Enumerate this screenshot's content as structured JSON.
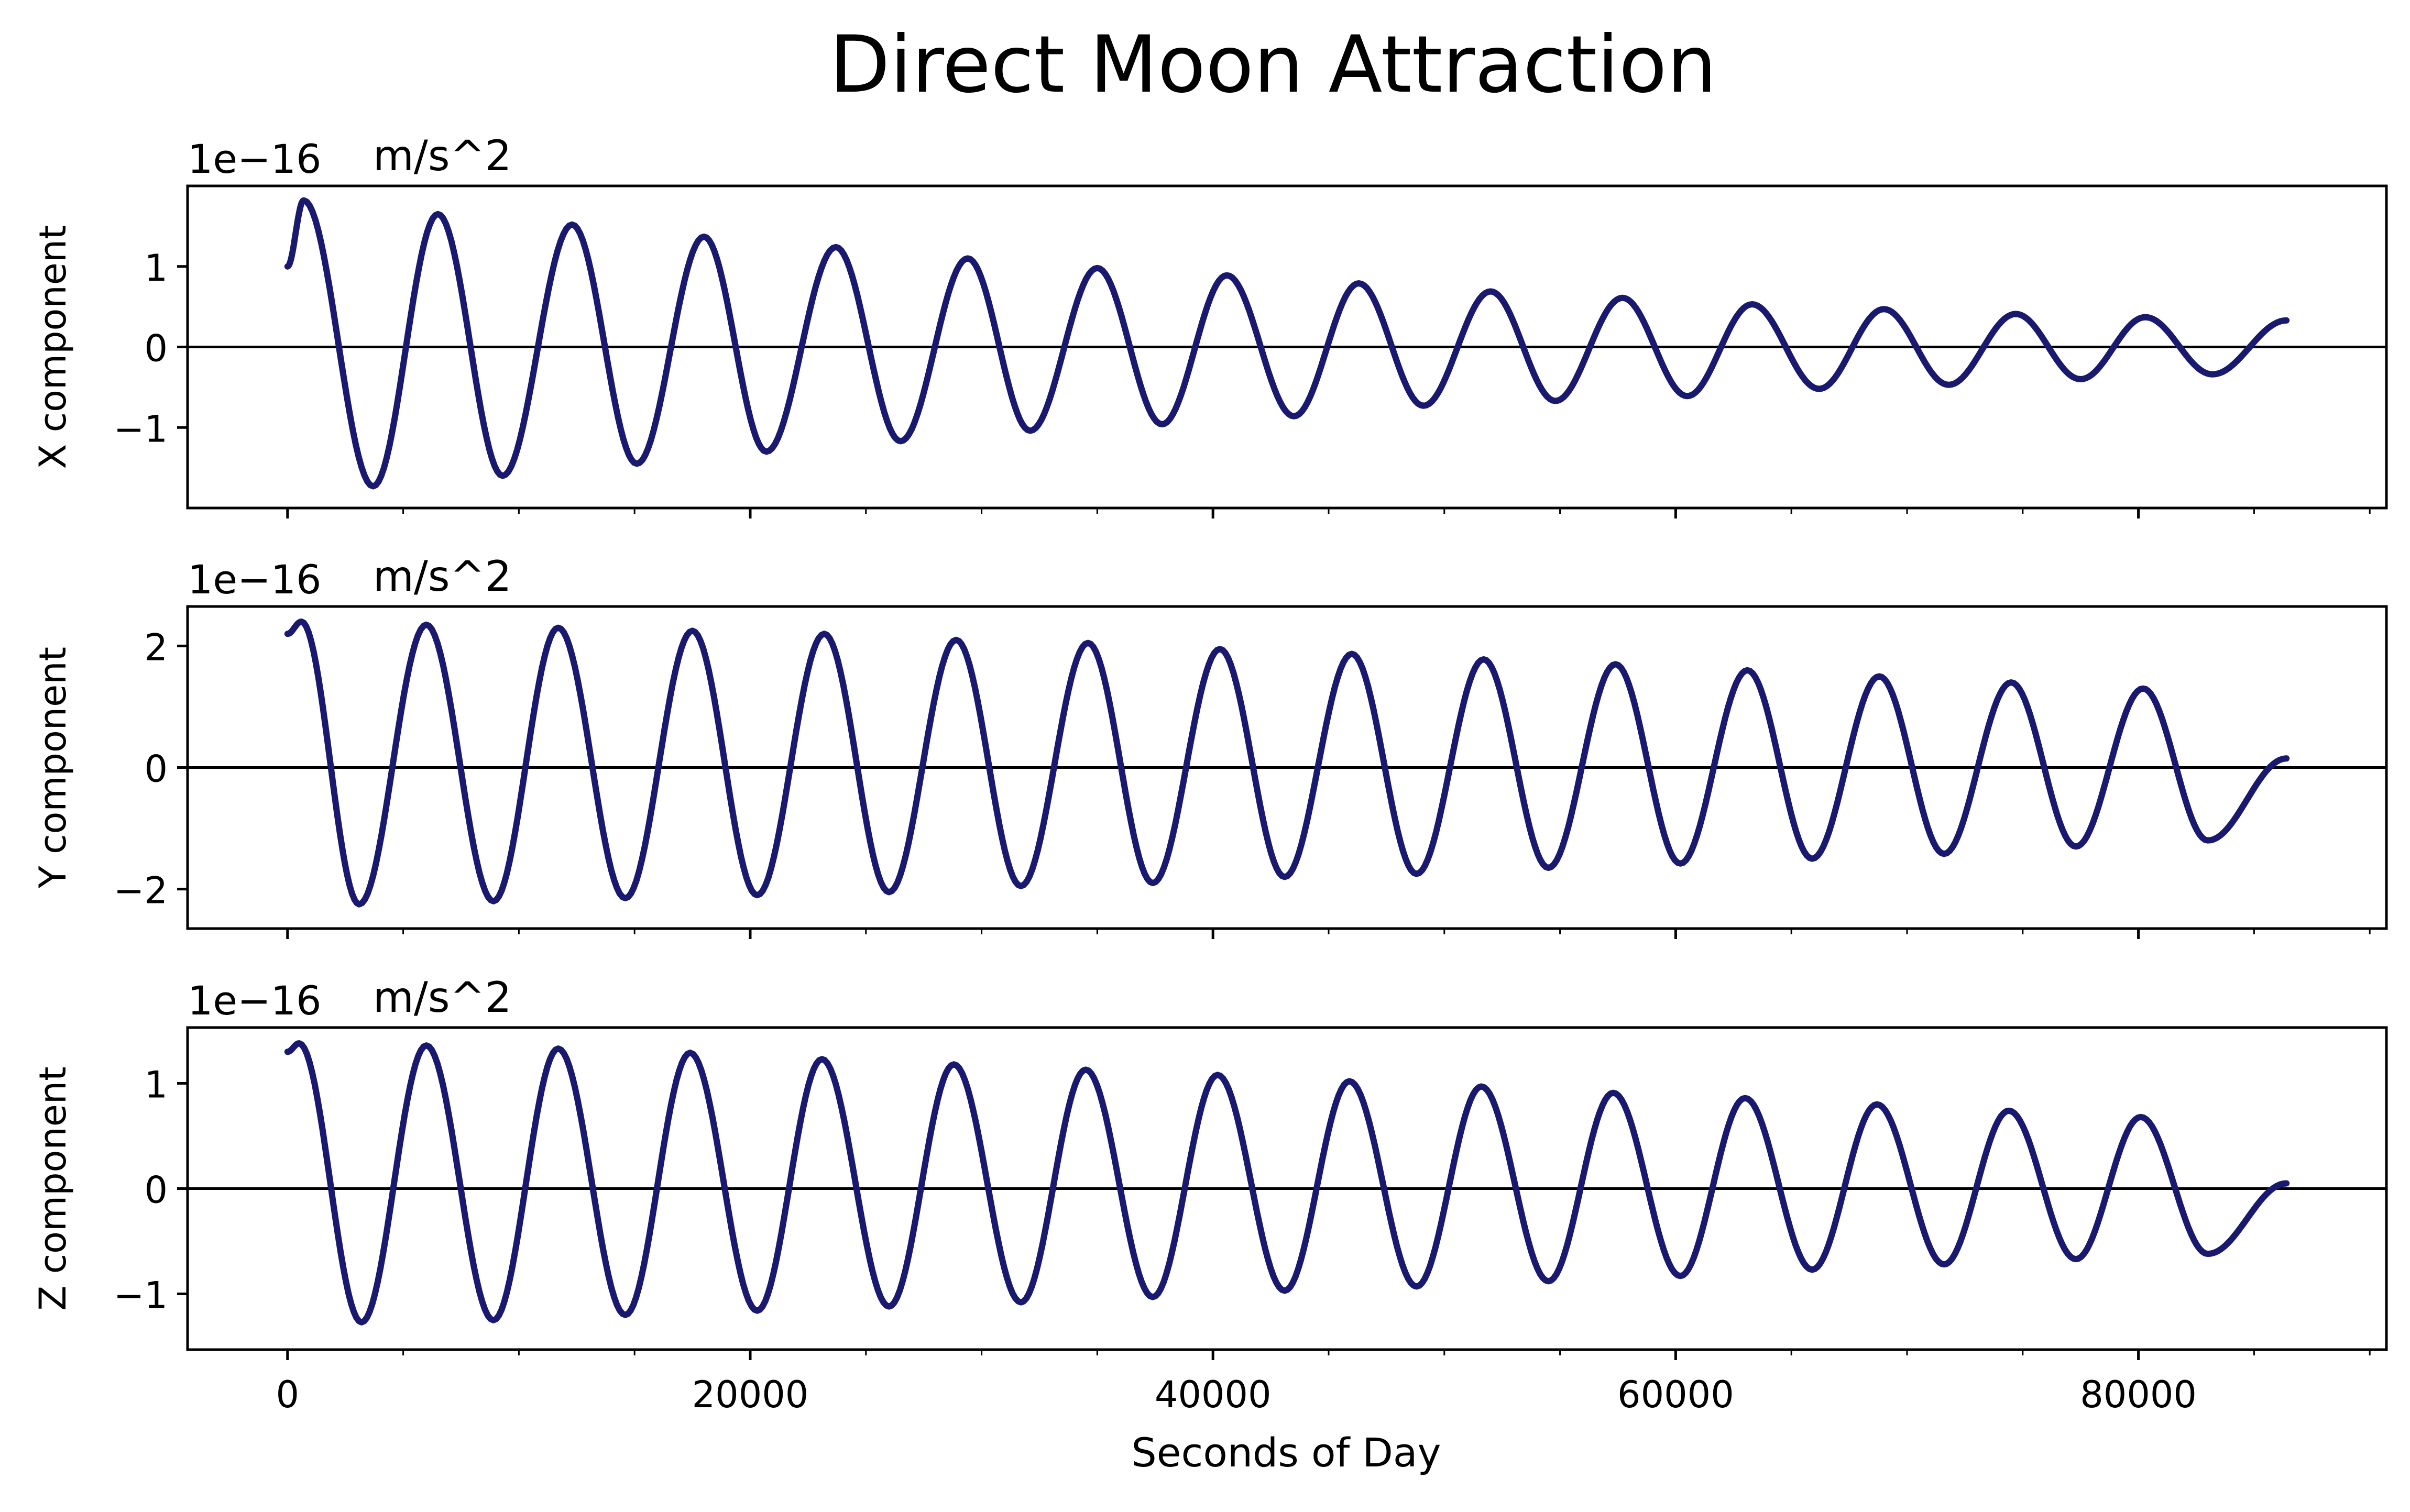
{
  "title": "Direct Moon Attraction",
  "colors": {
    "title": "#191970",
    "line": "#191970",
    "axis": "#000000",
    "zero_line": "#000000"
  },
  "chart_data": [
    {
      "type": "line",
      "ylabel": "X component",
      "offset_text": "1e−16",
      "unit_text": "m/s^2",
      "xlim": [
        -4320,
        90720
      ],
      "ylim": [
        -2.0,
        2.0
      ],
      "yticks": [
        -1,
        0,
        1
      ],
      "ytick_labels": [
        "−1",
        "0",
        "1"
      ],
      "zero_line": true,
      "wave": {
        "x_start": 0,
        "x_end": 86400,
        "initial_value": 1.0,
        "first_peak": 1.82,
        "first_trough": -1.73,
        "final_value": 0.33,
        "final_amplitude": 0.36,
        "cycles": 15.2
      },
      "series": [
        {
          "values_note": "",
          "x": [
            0,
            700,
            3700,
            6500,
            9300,
            12300,
            15100,
            18000,
            20700,
            23700,
            26500,
            29400,
            32100,
            35000,
            37800,
            40600,
            43500,
            46300,
            49100,
            52000,
            54800,
            57700,
            60500,
            63300,
            66200,
            69000,
            71800,
            74700,
            77500,
            80300,
            83200,
            86400
          ],
          "y": [
            1.0,
            1.82,
            -1.73,
            1.65,
            -1.6,
            1.52,
            -1.45,
            1.37,
            -1.3,
            1.24,
            -1.17,
            1.1,
            -1.04,
            0.98,
            -0.96,
            0.89,
            -0.86,
            0.79,
            -0.73,
            0.69,
            -0.67,
            0.61,
            -0.61,
            0.53,
            -0.52,
            0.47,
            -0.47,
            0.41,
            -0.4,
            0.37,
            -0.34,
            0.33
          ]
        }
      ]
    },
    {
      "type": "line",
      "ylabel": "Y component",
      "offset_text": "1e−16",
      "unit_text": "m/s^2",
      "xlim": [
        -4320,
        90720
      ],
      "ylim": [
        -2.65,
        2.65
      ],
      "yticks": [
        -2,
        0,
        2
      ],
      "ytick_labels": [
        "−2",
        "0",
        "2"
      ],
      "zero_line": true,
      "series": [
        {
          "x": [
            0,
            600,
            3100,
            6000,
            8900,
            11700,
            14600,
            17500,
            20300,
            23200,
            26000,
            28900,
            31700,
            34600,
            37400,
            40300,
            43100,
            46000,
            48800,
            51700,
            54500,
            57400,
            60200,
            63100,
            65900,
            68800,
            71600,
            74500,
            77300,
            80200,
            83000,
            86400
          ],
          "y": [
            2.2,
            2.4,
            -2.25,
            2.35,
            -2.2,
            2.3,
            -2.15,
            2.25,
            -2.1,
            2.2,
            -2.05,
            2.1,
            -1.95,
            2.05,
            -1.9,
            1.95,
            -1.8,
            1.87,
            -1.75,
            1.78,
            -1.65,
            1.7,
            -1.58,
            1.6,
            -1.5,
            1.5,
            -1.42,
            1.4,
            -1.3,
            1.3,
            -1.2,
            0.15
          ]
        }
      ]
    },
    {
      "type": "line",
      "ylabel": "Z component",
      "offset_text": "1e−16",
      "unit_text": "m/s^2",
      "xlim": [
        -4320,
        90720
      ],
      "ylim": [
        -1.53,
        1.53
      ],
      "yticks": [
        -1,
        0,
        1
      ],
      "ytick_labels": [
        "−1",
        "0",
        "1"
      ],
      "zero_line": true,
      "series": [
        {
          "x": [
            0,
            500,
            3200,
            6000,
            8900,
            11700,
            14600,
            17400,
            20300,
            23100,
            26000,
            28800,
            31700,
            34500,
            37400,
            40200,
            43100,
            45900,
            48800,
            51600,
            54500,
            57300,
            60200,
            63000,
            65900,
            68700,
            71600,
            74400,
            77300,
            80100,
            83000,
            86400
          ],
          "y": [
            1.3,
            1.38,
            -1.27,
            1.36,
            -1.25,
            1.33,
            -1.2,
            1.29,
            -1.16,
            1.23,
            -1.12,
            1.18,
            -1.08,
            1.13,
            -1.03,
            1.08,
            -0.97,
            1.02,
            -0.93,
            0.97,
            -0.88,
            0.91,
            -0.83,
            0.86,
            -0.77,
            0.8,
            -0.72,
            0.74,
            -0.67,
            0.68,
            -0.62,
            0.05
          ]
        }
      ]
    }
  ],
  "xaxis": {
    "label": "Seconds of Day",
    "ticks": [
      0,
      20000,
      40000,
      60000,
      80000
    ],
    "tick_labels": [
      "0",
      "20000",
      "40000",
      "60000",
      "80000"
    ],
    "minor_step": 5000
  }
}
